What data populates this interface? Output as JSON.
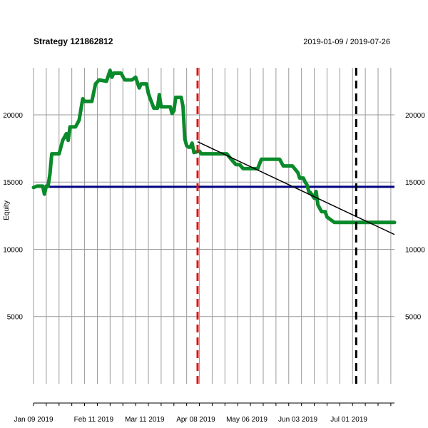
{
  "chart_data": {
    "type": "line",
    "title": "Strategy 121862812",
    "date_range": "2019-01-09 / 2019-07-26",
    "xlabel": "",
    "ylabel": "Equity",
    "x_range": [
      "2019-01-09",
      "2019-07-26"
    ],
    "ylim": [
      0,
      23500
    ],
    "y_ticks": [
      5000,
      10000,
      15000,
      20000
    ],
    "x_tick_labels": [
      {
        "date": "2019-01-09",
        "label": "Jan 09 2019"
      },
      {
        "date": "2019-02-11",
        "label": "Feb 11 2019"
      },
      {
        "date": "2019-03-11",
        "label": "Mar 11 2019"
      },
      {
        "date": "2019-04-08",
        "label": "Apr 08 2019"
      },
      {
        "date": "2019-05-06",
        "label": "May 06 2019"
      },
      {
        "date": "2019-06-03",
        "label": "Jun 03 2019"
      },
      {
        "date": "2019-07-01",
        "label": "Jul 01 2019"
      }
    ],
    "weekly_gridlines": [
      "2019-01-09",
      "2019-01-16",
      "2019-01-23",
      "2019-01-30",
      "2019-02-06",
      "2019-02-13",
      "2019-02-20",
      "2019-02-27",
      "2019-03-06",
      "2019-03-13",
      "2019-03-20",
      "2019-03-27",
      "2019-04-03",
      "2019-04-10",
      "2019-04-17",
      "2019-04-24",
      "2019-05-01",
      "2019-05-08",
      "2019-05-15",
      "2019-05-22",
      "2019-05-29",
      "2019-06-05",
      "2019-06-12",
      "2019-06-19",
      "2019-06-26",
      "2019-07-03",
      "2019-07-10",
      "2019-07-17",
      "2019-07-24"
    ],
    "series": [
      {
        "color": "#0a8a2a",
        "points": [
          [
            "2019-01-09",
            14600
          ],
          [
            "2019-01-11",
            14700
          ],
          [
            "2019-01-14",
            14700
          ],
          [
            "2019-01-15",
            14100
          ],
          [
            "2019-01-16",
            14700
          ],
          [
            "2019-01-17",
            14700
          ],
          [
            "2019-01-18",
            15600
          ],
          [
            "2019-01-19",
            17100
          ],
          [
            "2019-01-23",
            17100
          ],
          [
            "2019-01-25",
            18100
          ],
          [
            "2019-01-27",
            18600
          ],
          [
            "2019-01-28",
            18100
          ],
          [
            "2019-01-29",
            19100
          ],
          [
            "2019-02-01",
            19100
          ],
          [
            "2019-02-03",
            19600
          ],
          [
            "2019-02-05",
            21200
          ],
          [
            "2019-02-06",
            21000
          ],
          [
            "2019-02-10",
            21000
          ],
          [
            "2019-02-12",
            22300
          ],
          [
            "2019-02-14",
            22600
          ],
          [
            "2019-02-18",
            22500
          ],
          [
            "2019-02-20",
            23300
          ],
          [
            "2019-02-21",
            22800
          ],
          [
            "2019-02-22",
            23100
          ],
          [
            "2019-02-26",
            23100
          ],
          [
            "2019-02-28",
            22600
          ],
          [
            "2019-03-04",
            22600
          ],
          [
            "2019-03-06",
            22800
          ],
          [
            "2019-03-08",
            22000
          ],
          [
            "2019-03-09",
            22300
          ],
          [
            "2019-03-12",
            22300
          ],
          [
            "2019-03-13",
            21600
          ],
          [
            "2019-03-14",
            21200
          ],
          [
            "2019-03-16",
            20500
          ],
          [
            "2019-03-18",
            20500
          ],
          [
            "2019-03-19",
            21500
          ],
          [
            "2019-03-20",
            20600
          ],
          [
            "2019-03-25",
            20600
          ],
          [
            "2019-03-26",
            20100
          ],
          [
            "2019-03-27",
            20300
          ],
          [
            "2019-03-28",
            21300
          ],
          [
            "2019-03-31",
            21300
          ],
          [
            "2019-04-01",
            20600
          ],
          [
            "2019-04-02",
            18200
          ],
          [
            "2019-04-03",
            17700
          ],
          [
            "2019-04-04",
            17600
          ],
          [
            "2019-04-05",
            17600
          ],
          [
            "2019-04-06",
            17900
          ],
          [
            "2019-04-07",
            17200
          ],
          [
            "2019-04-10",
            17300
          ],
          [
            "2019-04-11",
            17100
          ],
          [
            "2019-04-25",
            17100
          ],
          [
            "2019-04-28",
            16600
          ],
          [
            "2019-04-30",
            16300
          ],
          [
            "2019-05-02",
            16300
          ],
          [
            "2019-05-04",
            16000
          ],
          [
            "2019-05-12",
            16000
          ],
          [
            "2019-05-14",
            16700
          ],
          [
            "2019-05-24",
            16700
          ],
          [
            "2019-05-26",
            16200
          ],
          [
            "2019-05-31",
            16200
          ],
          [
            "2019-06-03",
            15700
          ],
          [
            "2019-06-04",
            15300
          ],
          [
            "2019-06-06",
            15300
          ],
          [
            "2019-06-07",
            15000
          ],
          [
            "2019-06-08",
            14800
          ],
          [
            "2019-06-09",
            14300
          ],
          [
            "2019-06-10",
            14200
          ],
          [
            "2019-06-12",
            13800
          ],
          [
            "2019-06-13",
            14300
          ],
          [
            "2019-06-14",
            13300
          ],
          [
            "2019-06-16",
            12800
          ],
          [
            "2019-06-18",
            12800
          ],
          [
            "2019-06-19",
            12400
          ],
          [
            "2019-06-21",
            12200
          ],
          [
            "2019-06-23",
            12000
          ],
          [
            "2019-06-30",
            12000
          ],
          [
            "2019-07-02",
            12000
          ],
          [
            "2019-07-26",
            12000
          ]
        ]
      }
    ],
    "hlines": [
      {
        "y": 14650,
        "color": "#000080"
      }
    ],
    "trend_line": {
      "color": "#000000",
      "from": [
        "2019-04-09",
        18000
      ],
      "to": [
        "2019-07-26",
        11100
      ]
    },
    "vlines": [
      {
        "date": "2019-04-09",
        "color": "#dd1111",
        "style": "dashed"
      },
      {
        "date": "2019-07-05",
        "color": "#000000",
        "style": "dashed"
      }
    ],
    "grid": true
  }
}
